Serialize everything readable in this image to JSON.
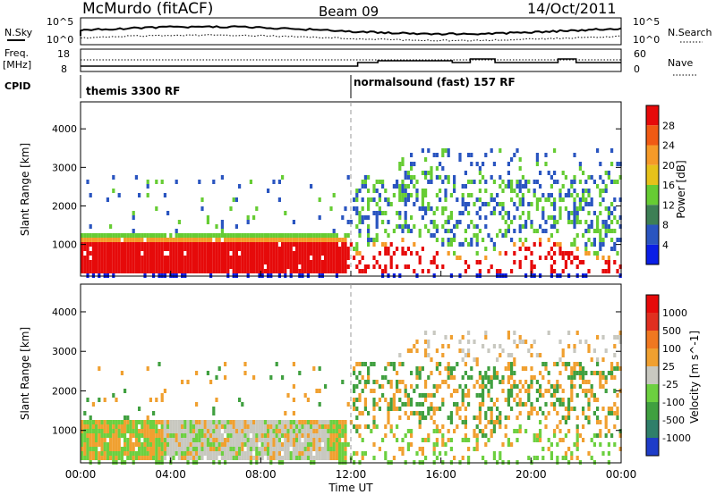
{
  "header": {
    "station": "McMurdo (fitACF)",
    "beam": "Beam 09",
    "date": "14/Oct/2011"
  },
  "top_panels": {
    "nsky_label": "N.Sky",
    "nsky_tick_top": "10^5",
    "nsky_tick_bottom": "10^0",
    "nsearch_label": "N.Search",
    "nsearch_tick_top": "10^5",
    "nsearch_tick_bottom": "10^0",
    "freq_label": "Freq.",
    "freq_unit": "[MHz]",
    "freq_ticks": [
      "18",
      "8"
    ],
    "nave_label": "Nave",
    "nave_ticks": [
      "60",
      "0"
    ],
    "cpid_label": "CPID",
    "cpid_segments": [
      {
        "label": "themis 3300 RF",
        "start_hour": 0
      },
      {
        "label": "normalsound (fast) 157 RF",
        "start_hour": 12
      }
    ]
  },
  "chart_data": [
    {
      "type": "heatmap",
      "title": "Power",
      "ylabel": "Slant Range [km]",
      "xlabel": "Time UT",
      "x_range_hours": [
        0,
        24
      ],
      "ylim": [
        180,
        4700
      ],
      "y_ticks": [
        1000,
        2000,
        3000,
        4000
      ],
      "x_tick_labels": [
        "00:00",
        "04:00",
        "08:00",
        "12:00",
        "16:00",
        "20:00",
        "00:00"
      ],
      "colorbar": {
        "label": "Power [dB]",
        "ticks": [
          "4",
          "8",
          "12",
          "16",
          "20",
          "24",
          "28"
        ],
        "colors": [
          "#0a1ee6",
          "#2a55c0",
          "#3d7f55",
          "#66cc33",
          "#e6c21a",
          "#f59a28",
          "#f05a14",
          "#e60a0a"
        ]
      }
    },
    {
      "type": "heatmap",
      "title": "Velocity",
      "ylabel": "Slant Range [km]",
      "xlabel": "Time UT",
      "x_range_hours": [
        0,
        24
      ],
      "ylim": [
        180,
        4700
      ],
      "y_ticks": [
        1000,
        2000,
        3000,
        4000
      ],
      "x_tick_labels": [
        "00:00",
        "04:00",
        "08:00",
        "12:00",
        "16:00",
        "20:00",
        "00:00"
      ],
      "colorbar": {
        "label": "Velocity [m s^-1]",
        "ticks": [
          "1000",
          "500",
          "100",
          "25",
          "-25",
          "-100",
          "-500",
          "-1000"
        ],
        "colors": [
          "#1e3cc8",
          "#2f7f6a",
          "#40a040",
          "#6cd040",
          "#c8c8c0",
          "#f0a030",
          "#f07820",
          "#e03020",
          "#e60a0a"
        ]
      }
    }
  ]
}
